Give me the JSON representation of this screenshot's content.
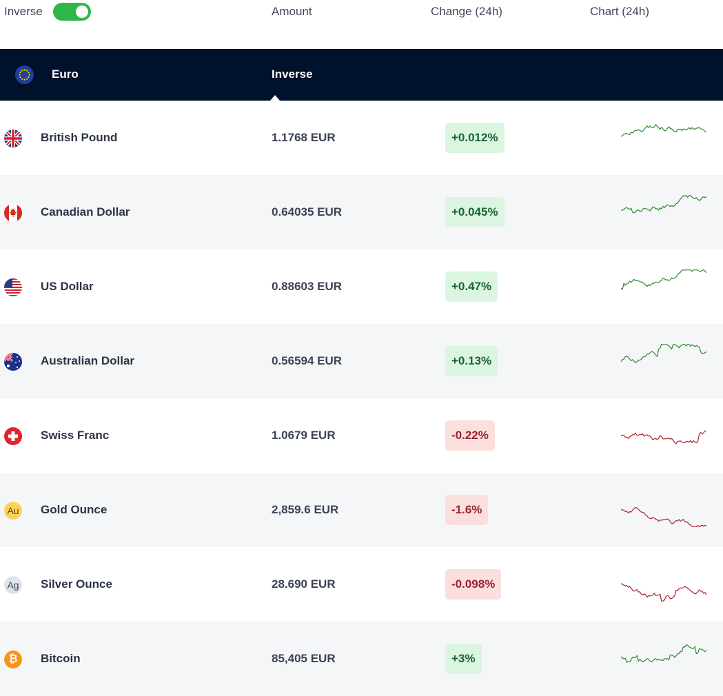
{
  "header": {
    "inverse_label": "Inverse",
    "inverse_on": true,
    "col_amount": "Amount",
    "col_change": "Change (24h)",
    "col_chart": "Chart (24h)"
  },
  "base": {
    "name": "Euro",
    "inverse_label": "Inverse",
    "flag_icon": "eu-flag-icon"
  },
  "colors": {
    "positive": "#2a8a2a",
    "negative": "#b0202e",
    "toggle": "#2eb84b",
    "header_bg": "#00112c"
  },
  "rows": [
    {
      "name": "British Pound",
      "amount": "1.1768 EUR",
      "change": "+0.012%",
      "dir": "pos",
      "icon": "uk-flag-icon"
    },
    {
      "name": "Canadian Dollar",
      "amount": "0.64035 EUR",
      "change": "+0.045%",
      "dir": "pos",
      "icon": "canada-flag-icon"
    },
    {
      "name": "US Dollar",
      "amount": "0.88603 EUR",
      "change": "+0.47%",
      "dir": "pos",
      "icon": "us-flag-icon"
    },
    {
      "name": "Australian Dollar",
      "amount": "0.56594 EUR",
      "change": "+0.13%",
      "dir": "pos",
      "icon": "australia-flag-icon"
    },
    {
      "name": "Swiss Franc",
      "amount": "1.0679 EUR",
      "change": "-0.22%",
      "dir": "neg",
      "icon": "switzerland-flag-icon"
    },
    {
      "name": "Gold Ounce",
      "amount": "2,859.6 EUR",
      "change": "-1.6%",
      "dir": "neg",
      "icon": "gold-coin-icon",
      "coin_text": "Au"
    },
    {
      "name": "Silver Ounce",
      "amount": "28.690 EUR",
      "change": "-0.098%",
      "dir": "neg",
      "icon": "silver-coin-icon",
      "coin_text": "Ag"
    },
    {
      "name": "Bitcoin",
      "amount": "85,405 EUR",
      "change": "+3%",
      "dir": "pos",
      "icon": "bitcoin-icon",
      "coin_text": "₿"
    }
  ]
}
